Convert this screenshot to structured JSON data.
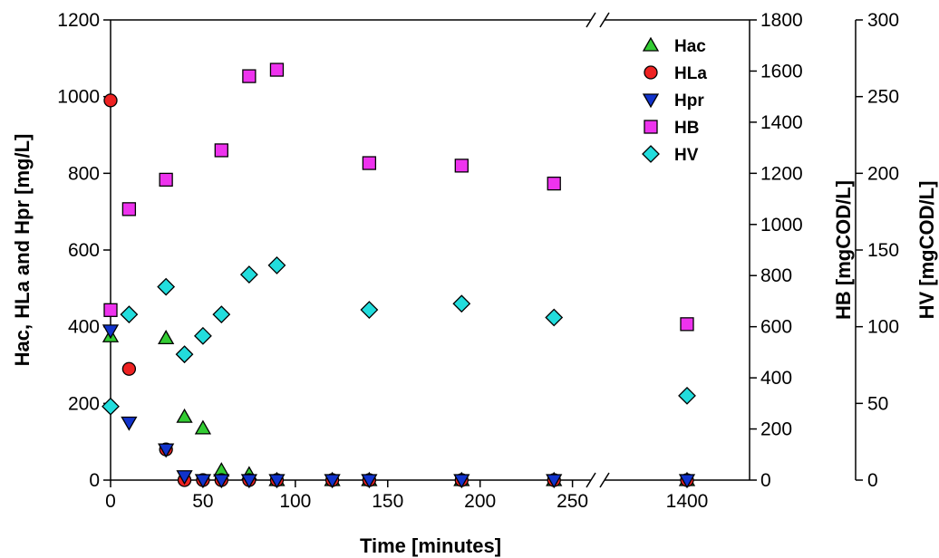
{
  "chart_data": {
    "type": "scatter",
    "xlabel": "Time [minutes]",
    "ylabel_left": "Hac, HLa and Hpr [mg/L]",
    "ylabel_right1": "HB [mgCOD/L]",
    "ylabel_right2": "HV [mgCOD/L]",
    "x_axis": {
      "broken": true,
      "segment1_range": [
        0,
        260
      ],
      "segment1_ticks": [
        0,
        50,
        100,
        150,
        200,
        250
      ],
      "segment2_ticks": [
        1400
      ],
      "break_marker": "//"
    },
    "ylim_left": [
      0,
      1200
    ],
    "yticks_left": [
      0,
      200,
      400,
      600,
      800,
      1000,
      1200
    ],
    "ylim_right1": [
      0,
      1800
    ],
    "yticks_right1": [
      0,
      200,
      400,
      600,
      800,
      1000,
      1200,
      1400,
      1600,
      1800
    ],
    "ylim_right2": [
      0,
      300
    ],
    "yticks_right2": [
      0,
      50,
      100,
      150,
      200,
      250,
      300
    ],
    "grid": false,
    "legend_position": "top-right",
    "series": [
      {
        "name": "Hac",
        "axis": "left",
        "marker": "triangle-up",
        "color": "#33cc33",
        "x": [
          0,
          30,
          40,
          50,
          60,
          75,
          90,
          120,
          140,
          190,
          240,
          1400
        ],
        "y": [
          375,
          370,
          165,
          135,
          25,
          15,
          0,
          0,
          0,
          0,
          0,
          0
        ]
      },
      {
        "name": "HLa",
        "axis": "left",
        "marker": "circle",
        "color": "#ee2222",
        "x": [
          0,
          10,
          30,
          40,
          50,
          60,
          75,
          90,
          120,
          140,
          190,
          240,
          1400
        ],
        "y": [
          990,
          290,
          80,
          0,
          0,
          0,
          0,
          0,
          0,
          0,
          0,
          0,
          0
        ]
      },
      {
        "name": "Hpr",
        "axis": "left",
        "marker": "triangle-down",
        "color": "#1133cc",
        "x": [
          0,
          10,
          30,
          40,
          50,
          60,
          75,
          90,
          120,
          140,
          190,
          240,
          1400
        ],
        "y": [
          390,
          150,
          80,
          10,
          0,
          0,
          0,
          0,
          0,
          0,
          0,
          0,
          0
        ]
      },
      {
        "name": "HB",
        "axis": "right1",
        "marker": "square",
        "color": "#ee33ee",
        "x": [
          0,
          10,
          30,
          60,
          75,
          90,
          140,
          190,
          240,
          1400
        ],
        "y": [
          665,
          1060,
          1175,
          1290,
          1580,
          1605,
          1240,
          1230,
          1160,
          610
        ]
      },
      {
        "name": "HV",
        "axis": "right2",
        "marker": "diamond",
        "color": "#22dddd",
        "x": [
          0,
          10,
          30,
          40,
          50,
          60,
          75,
          90,
          140,
          190,
          240,
          1400
        ],
        "y": [
          48,
          108,
          126,
          82,
          94,
          108,
          134,
          140,
          111,
          115,
          106,
          55
        ]
      }
    ]
  }
}
